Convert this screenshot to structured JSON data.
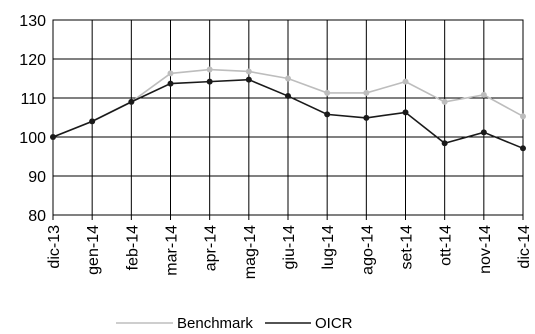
{
  "chart_data": {
    "type": "line",
    "title": "",
    "xlabel": "",
    "ylabel": "",
    "categories": [
      "dic-13",
      "gen-14",
      "feb-14",
      "mar-14",
      "apr-14",
      "mag-14",
      "giu-14",
      "lug-14",
      "ago-14",
      "set-14",
      "ott-14",
      "nov-14",
      "dic-14"
    ],
    "ylim": [
      80,
      130
    ],
    "yticks": [
      80,
      90,
      100,
      110,
      120,
      130
    ],
    "grid": true,
    "legend": "bottom",
    "series": [
      {
        "name": "Benchmark",
        "color": "#bdbdbd",
        "values": [
          100,
          104,
          109,
          116.3,
          117.3,
          116.8,
          115,
          111.3,
          111.3,
          114.2,
          109,
          110.8,
          105.3
        ]
      },
      {
        "name": "OICR",
        "color": "#1a1a1a",
        "values": [
          100,
          104,
          109,
          113.7,
          114.2,
          114.7,
          110.5,
          105.8,
          104.9,
          106.3,
          98.4,
          101.2,
          97.1
        ]
      }
    ]
  }
}
